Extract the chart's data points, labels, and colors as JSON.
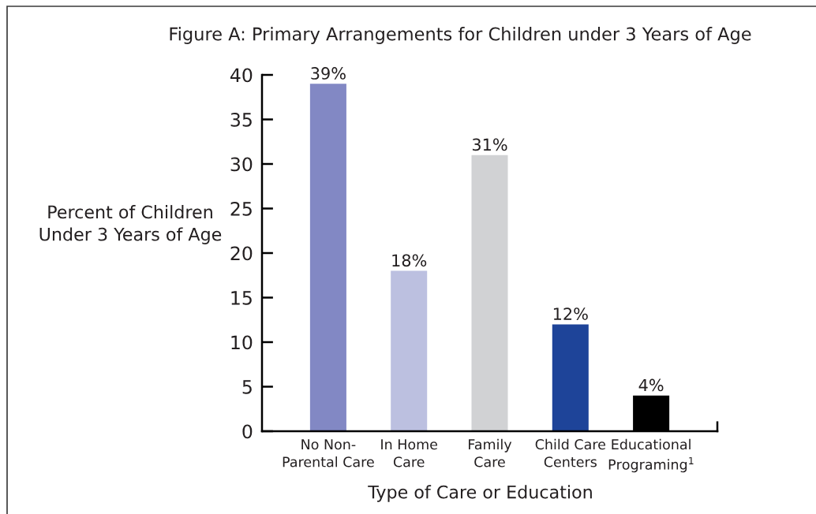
{
  "chart_data": {
    "type": "bar",
    "title": "Figure A: Primary Arrangements for Children under 3 Years of Age",
    "xlabel": "Type of Care or Education",
    "ylabel": "Percent of Children\nUnder 3 Years of Age",
    "categories": [
      "No Non-\nParental Care",
      "In Home\nCare",
      "Family\nCare",
      "Child Care\nCenters",
      "Educational\nPrograming$^{1}$"
    ],
    "values": [
      39,
      18,
      31,
      12,
      4
    ],
    "colors": [
      "#8288c4",
      "#bcc0e0",
      "#d1d2d4",
      "#1e4499",
      "#000000"
    ],
    "value_labels": [
      "39%",
      "18%",
      "31%",
      "12%",
      "4%"
    ],
    "ylim": [
      0,
      40
    ],
    "yticks": [
      0,
      5,
      10,
      15,
      20,
      25,
      30,
      35,
      40
    ]
  }
}
